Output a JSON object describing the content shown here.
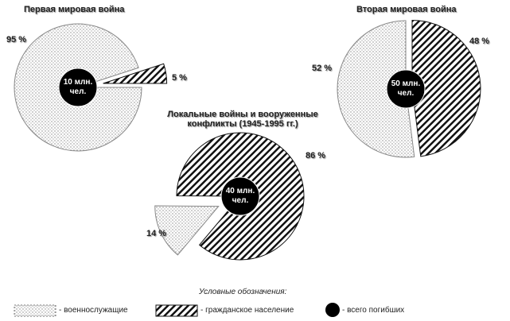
{
  "chart_data": [
    {
      "type": "pie",
      "title": "Первая мировая война",
      "center_label": "10 млн. чел.",
      "values": [
        95,
        5
      ],
      "value_labels": [
        "95 %",
        "5 %"
      ],
      "fills": [
        "dots",
        "hatch"
      ]
    },
    {
      "type": "pie",
      "title": "Вторая мировая война",
      "center_label": "50 млн. чел.",
      "values": [
        52,
        48
      ],
      "value_labels": [
        "52 %",
        "48 %"
      ],
      "fills": [
        "dots",
        "hatch"
      ]
    },
    {
      "type": "pie",
      "title": "Локальные войны и вооруженные конфликты (1945-1995 гг.)",
      "center_label": "40 млн. чел.",
      "values": [
        14,
        86
      ],
      "value_labels": [
        "14 %",
        "86 %"
      ],
      "fills": [
        "dots",
        "hatch"
      ]
    }
  ],
  "legend": {
    "title": "Условные обозначения:",
    "items": [
      "- военнослужащие",
      "- гражданское население",
      "- всего погибших"
    ]
  }
}
